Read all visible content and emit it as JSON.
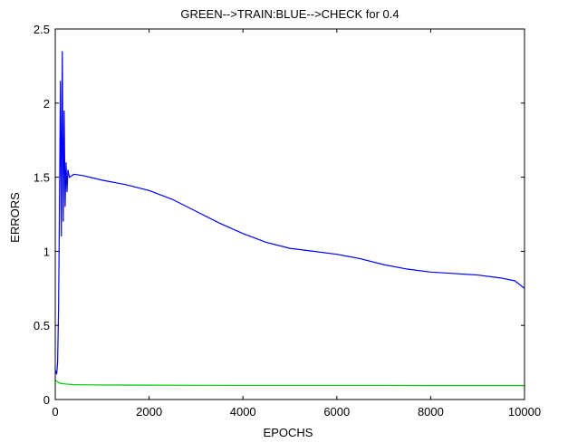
{
  "chart_data": {
    "type": "line",
    "title": "GREEN-->TRAIN:BLUE-->CHECK for 0.4",
    "xlabel": "EPOCHS",
    "ylabel": "ERRORS",
    "xlim": [
      0,
      10000
    ],
    "ylim": [
      0,
      2.5
    ],
    "x_ticks": [
      0,
      2000,
      4000,
      6000,
      8000,
      10000
    ],
    "x_tick_labels": [
      "0",
      "2000",
      "4000",
      "6000",
      "8000",
      "10000"
    ],
    "y_ticks": [
      0,
      0.5,
      1,
      1.5,
      2,
      2.5
    ],
    "y_tick_labels": [
      "0",
      "0.5",
      "1",
      "1.5",
      "2",
      "2.5"
    ],
    "grid": false,
    "series": [
      {
        "color": "#0000ff",
        "x": [
          0,
          30,
          50,
          70,
          90,
          110,
          130,
          150,
          170,
          190,
          210,
          230,
          250,
          270,
          300,
          400,
          600,
          1000,
          1500,
          2000,
          2500,
          3000,
          3500,
          4000,
          4500,
          5000,
          5500,
          6000,
          6500,
          7000,
          7500,
          8000,
          8500,
          9000,
          9500,
          9800,
          10000
        ],
        "y": [
          0.2,
          0.17,
          0.25,
          0.6,
          1.3,
          2.15,
          1.1,
          2.35,
          1.2,
          1.95,
          1.3,
          1.6,
          1.4,
          1.55,
          1.5,
          1.52,
          1.51,
          1.48,
          1.45,
          1.41,
          1.35,
          1.27,
          1.19,
          1.12,
          1.06,
          1.02,
          1.0,
          0.98,
          0.95,
          0.91,
          0.88,
          0.86,
          0.85,
          0.84,
          0.82,
          0.8,
          0.75
        ]
      },
      {
        "color": "#00cc00",
        "x": [
          0,
          100,
          200,
          400,
          700,
          1000,
          2000,
          3000,
          4000,
          5000,
          6000,
          7000,
          8000,
          9000,
          10000
        ],
        "y": [
          0.13,
          0.11,
          0.105,
          0.1,
          0.099,
          0.098,
          0.097,
          0.096,
          0.095,
          0.095,
          0.095,
          0.095,
          0.094,
          0.094,
          0.094
        ]
      }
    ]
  }
}
